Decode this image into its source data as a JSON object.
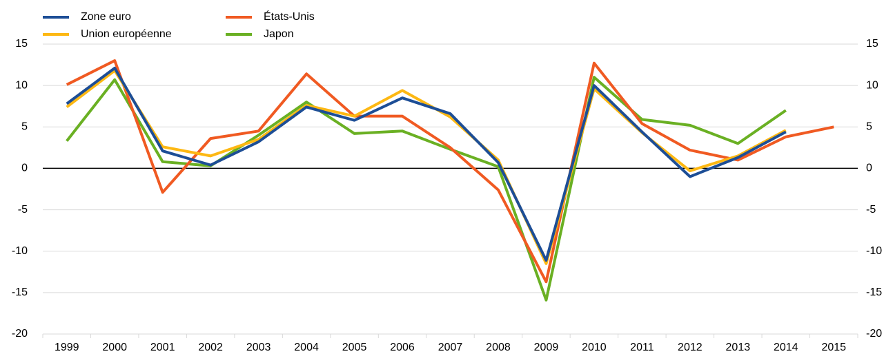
{
  "chart_data": {
    "type": "line",
    "categories": [
      "1999",
      "2000",
      "2001",
      "2002",
      "2003",
      "2004",
      "2005",
      "2006",
      "2007",
      "2008",
      "2009",
      "2010",
      "2011",
      "2012",
      "2013",
      "2014",
      "2015"
    ],
    "series": [
      {
        "name": "Zone euro",
        "color": "#1d4e96",
        "values": [
          7.8,
          12.1,
          2.1,
          0.4,
          3.2,
          7.4,
          5.8,
          8.5,
          6.6,
          0.7,
          -11.1,
          10.0,
          4.4,
          -1.0,
          1.3,
          4.4,
          null
        ]
      },
      {
        "name": "Union européenne",
        "color": "#fdb813",
        "values": [
          7.4,
          11.8,
          2.6,
          1.5,
          3.5,
          7.6,
          6.3,
          9.4,
          6.2,
          1.0,
          -11.5,
          9.6,
          4.3,
          -0.3,
          1.5,
          4.6,
          null
        ]
      },
      {
        "name": "États-Unis",
        "color": "#f05a22",
        "values": [
          10.1,
          13.0,
          -2.9,
          3.6,
          4.5,
          11.4,
          6.3,
          6.3,
          2.5,
          -2.6,
          -13.7,
          12.7,
          5.4,
          2.2,
          1.0,
          3.8,
          5.0
        ]
      },
      {
        "name": "Japon",
        "color": "#6ab023",
        "values": [
          3.3,
          10.7,
          0.8,
          0.3,
          4.0,
          8.0,
          4.2,
          4.5,
          2.3,
          0.2,
          -15.9,
          11.0,
          5.9,
          5.2,
          3.0,
          7.0,
          null
        ]
      }
    ],
    "ylim": [
      -20,
      15
    ],
    "yticks": [
      -20,
      -15,
      -10,
      -5,
      0,
      5,
      10,
      15
    ],
    "y2lim": [
      -20,
      15
    ],
    "y2ticks": [
      -20,
      -15,
      -10,
      -5,
      0,
      5,
      10,
      15
    ],
    "grid": true
  }
}
